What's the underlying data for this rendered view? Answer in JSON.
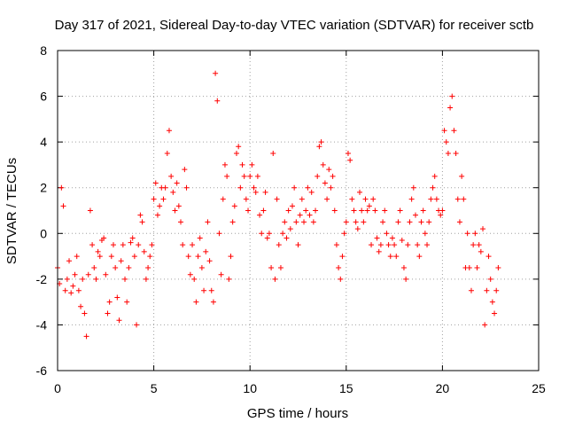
{
  "chart_data": {
    "type": "scatter",
    "title": "Day 317 of 2021, Sidereal Day-to-day VTEC variation (SDTVAR) for receiver sctb",
    "xlabel": "GPS time / hours",
    "ylabel": "SDTVAR / TECUs",
    "xlim": [
      0,
      25
    ],
    "ylim": [
      -6,
      8
    ],
    "xticks": [
      0,
      5,
      10,
      15,
      20,
      25
    ],
    "yticks": [
      -6,
      -4,
      -2,
      0,
      2,
      4,
      6,
      8
    ],
    "xtick_labels": [
      "0",
      "5",
      "10",
      "15",
      "20",
      "25"
    ],
    "ytick_labels": [
      "-6",
      "-4",
      "-2",
      "0",
      "2",
      "4",
      "6",
      "8"
    ],
    "grid": true,
    "marker": "+",
    "color": "#ff0000",
    "series": [
      {
        "name": "SDTVAR",
        "x": [
          0.0,
          0.1,
          0.2,
          0.3,
          0.4,
          0.5,
          0.6,
          0.7,
          0.8,
          0.9,
          1.0,
          1.1,
          1.2,
          1.3,
          1.4,
          1.5,
          1.6,
          1.7,
          1.8,
          1.9,
          2.0,
          2.1,
          2.2,
          2.3,
          2.4,
          2.5,
          2.6,
          2.7,
          2.8,
          2.9,
          3.0,
          3.1,
          3.2,
          3.3,
          3.4,
          3.5,
          3.6,
          3.7,
          3.8,
          3.9,
          4.0,
          4.1,
          4.2,
          4.3,
          4.4,
          4.5,
          4.6,
          4.7,
          4.8,
          4.9,
          5.0,
          5.1,
          5.2,
          5.3,
          5.4,
          5.5,
          5.6,
          5.7,
          5.8,
          5.9,
          6.0,
          6.1,
          6.2,
          6.3,
          6.4,
          6.5,
          6.6,
          6.7,
          6.8,
          6.9,
          7.0,
          7.1,
          7.2,
          7.3,
          7.4,
          7.5,
          7.6,
          7.7,
          7.8,
          7.9,
          8.0,
          8.1,
          8.2,
          8.3,
          8.4,
          8.5,
          8.6,
          8.7,
          8.8,
          8.9,
          9.0,
          9.1,
          9.2,
          9.3,
          9.4,
          9.5,
          9.6,
          9.7,
          9.8,
          9.9,
          10.0,
          10.1,
          10.2,
          10.3,
          10.4,
          10.5,
          10.6,
          10.7,
          10.8,
          10.9,
          11.0,
          11.1,
          11.2,
          11.3,
          11.4,
          11.5,
          11.6,
          11.7,
          11.8,
          11.9,
          12.0,
          12.1,
          12.2,
          12.3,
          12.4,
          12.5,
          12.6,
          12.7,
          12.8,
          12.9,
          13.0,
          13.1,
          13.2,
          13.3,
          13.4,
          13.5,
          13.6,
          13.7,
          13.8,
          13.9,
          14.0,
          14.1,
          14.2,
          14.3,
          14.4,
          14.5,
          14.6,
          14.7,
          14.8,
          14.9,
          15.0,
          15.1,
          15.2,
          15.3,
          15.4,
          15.5,
          15.6,
          15.7,
          15.8,
          15.9,
          16.0,
          16.1,
          16.2,
          16.3,
          16.4,
          16.5,
          16.6,
          16.7,
          16.8,
          16.9,
          17.0,
          17.1,
          17.2,
          17.3,
          17.4,
          17.5,
          17.6,
          17.7,
          17.8,
          17.9,
          18.0,
          18.1,
          18.2,
          18.3,
          18.4,
          18.5,
          18.6,
          18.7,
          18.8,
          18.9,
          19.0,
          19.1,
          19.2,
          19.3,
          19.4,
          19.5,
          19.6,
          19.7,
          19.8,
          19.9,
          20.0,
          20.1,
          20.2,
          20.3,
          20.4,
          20.5,
          20.6,
          20.7,
          20.8,
          20.9,
          21.0,
          21.1,
          21.2,
          21.3,
          21.4,
          21.5,
          21.6,
          21.7,
          21.8,
          21.9,
          22.0,
          22.1,
          22.2,
          22.3,
          22.4,
          22.5,
          22.6,
          22.7,
          22.8,
          22.9
        ],
        "y": [
          -1.5,
          -2.2,
          2.0,
          1.2,
          -2.5,
          -2.0,
          -1.2,
          -2.6,
          -2.3,
          -1.8,
          -1.0,
          -2.5,
          -3.2,
          -2.0,
          -3.5,
          -4.5,
          -1.8,
          1.0,
          -0.5,
          -1.5,
          -2.0,
          -0.8,
          -1.0,
          -0.3,
          -0.2,
          -1.8,
          -3.5,
          -3.0,
          -1.0,
          -0.5,
          -1.5,
          -2.8,
          -3.8,
          -1.2,
          -0.5,
          -2.0,
          -3.0,
          -1.5,
          -0.4,
          -0.2,
          -1.0,
          -4.0,
          -0.5,
          0.8,
          0.5,
          -0.8,
          -2.0,
          -1.5,
          -1.0,
          -0.5,
          1.5,
          2.2,
          0.8,
          1.2,
          2.0,
          1.5,
          2.0,
          3.5,
          4.5,
          2.5,
          1.8,
          1.0,
          2.2,
          1.2,
          0.5,
          -0.5,
          2.8,
          2.0,
          -1.0,
          -1.8,
          -0.5,
          -2.0,
          -3.0,
          -1.0,
          -0.2,
          -1.5,
          -2.5,
          -0.8,
          0.5,
          -1.2,
          -2.5,
          -3.0,
          7.0,
          5.8,
          0.0,
          -1.8,
          1.5,
          3.0,
          2.5,
          -2.0,
          -1.0,
          0.5,
          1.2,
          3.5,
          3.8,
          2.0,
          3.0,
          2.5,
          1.5,
          1.0,
          2.5,
          3.0,
          2.0,
          1.8,
          2.5,
          0.8,
          0.0,
          1.0,
          1.8,
          -0.2,
          0.0,
          -1.5,
          3.5,
          -2.0,
          1.5,
          -0.5,
          -1.5,
          0.0,
          0.5,
          -0.2,
          1.0,
          0.2,
          1.2,
          2.0,
          0.5,
          -0.5,
          0.8,
          1.5,
          0.5,
          1.0,
          2.0,
          0.8,
          1.8,
          0.5,
          1.0,
          2.5,
          3.8,
          4.0,
          3.0,
          2.2,
          1.5,
          2.8,
          2.0,
          2.5,
          1.0,
          -0.5,
          -1.5,
          -2.0,
          -1.0,
          0.0,
          0.5,
          3.5,
          3.2,
          1.5,
          1.0,
          0.5,
          0.2,
          1.8,
          1.0,
          0.5,
          1.5,
          1.0,
          1.2,
          -0.5,
          1.5,
          1.0,
          -0.2,
          -0.8,
          -0.5,
          0.5,
          1.0,
          0.0,
          -0.5,
          -1.0,
          -0.2,
          -0.5,
          -1.0,
          0.5,
          1.0,
          -0.3,
          -1.5,
          -2.0,
          -0.5,
          0.5,
          1.5,
          2.0,
          0.8,
          -0.5,
          -1.0,
          0.5,
          1.0,
          0.0,
          -0.5,
          0.5,
          1.5,
          2.0,
          2.5,
          1.5,
          1.0,
          0.8,
          1.0,
          4.5,
          4.0,
          3.5,
          5.5,
          6.0,
          4.5,
          3.5,
          1.5,
          0.5,
          2.5,
          1.5,
          -1.5,
          0.0,
          -1.5,
          -2.5,
          -0.5,
          0.0,
          -1.5,
          -0.5,
          -0.8,
          0.2,
          -4.0,
          -2.5,
          -1.0,
          -2.0,
          -3.0,
          -3.5,
          -2.5,
          -1.5
        ]
      }
    ]
  }
}
